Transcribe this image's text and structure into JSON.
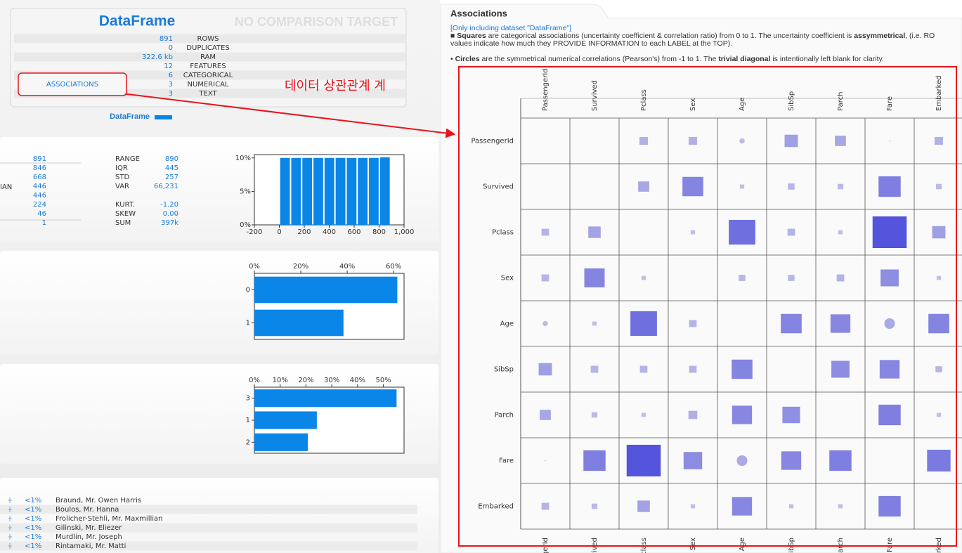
{
  "summary": {
    "title": "DataFrame",
    "compare": "NO COMPARISON TARGET",
    "rows": [
      {
        "value": "891",
        "label": "ROWS"
      },
      {
        "value": "0",
        "label": "DUPLICATES"
      },
      {
        "value": "322.6 kb",
        "label": "RAM"
      },
      {
        "value": "12",
        "label": "FEATURES"
      },
      {
        "value": "6",
        "label": "CATEGORICAL"
      },
      {
        "value": "3",
        "label": "NUMERICAL"
      },
      {
        "value": "3",
        "label": "TEXT"
      }
    ],
    "button": "ASSOCIATIONS",
    "legend": "DataFrame"
  },
  "annotation": "데이터 상관관계 계",
  "numeric_panel": {
    "left_label": "IAN",
    "left_values": [
      "891",
      "846",
      "668",
      "446",
      "446",
      "224",
      "46",
      "1"
    ],
    "stats": [
      {
        "label": "RANGE",
        "value": "890"
      },
      {
        "label": "IQR",
        "value": "445"
      },
      {
        "label": "STD",
        "value": "257"
      },
      {
        "label": "VAR",
        "value": "66,231"
      },
      {
        "label": "KURT.",
        "value": "-1.20"
      },
      {
        "label": "SKEW",
        "value": "0.00"
      },
      {
        "label": "SUM",
        "value": "397k"
      }
    ]
  },
  "text_panel": {
    "rows": [
      {
        "pct": "<1%",
        "name": "Braund, Mr. Owen Harris"
      },
      {
        "pct": "<1%",
        "name": "Boulos, Mr. Hanna"
      },
      {
        "pct": "<1%",
        "name": "Frolicher-Stehli, Mr. Maxmillian"
      },
      {
        "pct": "<1%",
        "name": "Gilinski, Mr. Eliezer"
      },
      {
        "pct": "<1%",
        "name": "Murdlin, Mr. Joseph"
      },
      {
        "pct": "<1%",
        "name": "Rintamaki, Mr. Matti"
      }
    ]
  },
  "associations": {
    "title": "Associations",
    "note": "[Only including dataset \"DataFrame\"]",
    "para1": [
      "■ ",
      "Squares",
      " are categorical associations (uncertainty coefficient & correlation ratio) from 0 to 1. The uncertainty coefficient is ",
      "assymmetrical",
      ", (i.e. RO"
    ],
    "para1_line2": "values indicate how much they PROVIDE INFORMATION to each LABEL at the TOP).",
    "para2": [
      "• ",
      "Circles",
      " are the symmetrical numerical correlations (Pearson's) from -1 to 1. The ",
      "trivial diagonal",
      " is intentionally left blank for clarity."
    ]
  },
  "chart_data": [
    {
      "type": "histogram",
      "bins": [
        1,
        90,
        179,
        268,
        357,
        446,
        535,
        624,
        713,
        802,
        891
      ],
      "values": [
        10,
        10,
        10,
        10,
        10,
        10,
        10,
        10,
        10,
        10.1
      ],
      "color": "#0a86e8",
      "xlim": [
        -200,
        1000
      ],
      "xticks": [
        -200,
        0,
        200,
        400,
        600,
        800,
        {
          "value": 1000,
          "label": "1,000"
        }
      ],
      "ylim": [
        0,
        10.5
      ],
      "yticks": [
        {
          "value": 0,
          "label": "0%"
        },
        {
          "value": 5,
          "label": "5%"
        },
        {
          "value": 10,
          "label": "10%"
        }
      ]
    },
    {
      "type": "hbar",
      "categories": [
        "0",
        "1"
      ],
      "values": [
        61.6,
        38.4
      ],
      "color": "#0a86e8",
      "xlim": [
        0,
        64.5
      ],
      "xticks": [
        {
          "value": 0,
          "label": "0%"
        },
        {
          "value": 20,
          "label": "20%"
        },
        {
          "value": 40,
          "label": "40%"
        },
        {
          "value": 60,
          "label": "60%"
        }
      ]
    },
    {
      "type": "hbar",
      "categories": [
        "3",
        "1",
        "2"
      ],
      "values": [
        55.1,
        24.2,
        20.7
      ],
      "color": "#0a86e8",
      "xlim": [
        0,
        58
      ],
      "xticks": [
        {
          "value": 0,
          "label": "0%"
        },
        {
          "value": 10,
          "label": "10%"
        },
        {
          "value": 20,
          "label": "20%"
        },
        {
          "value": 30,
          "label": "30%"
        },
        {
          "value": 40,
          "label": "40%"
        },
        {
          "value": 50,
          "label": "50%"
        }
      ]
    },
    {
      "type": "matrix",
      "labels": [
        "PassengerId",
        "Survived",
        "Pclass",
        "Sex",
        "Age",
        "SibSp",
        "Parch",
        "Fare",
        "Embarked"
      ],
      "color_low": "#cfcfea",
      "color_high": "#4f4fdb",
      "values": [
        [
          null,
          0,
          0.19,
          0.19,
          0.12,
          0.3,
          0.25,
          0.03,
          0.19
        ],
        [
          0,
          null,
          0.25,
          0.47,
          0.1,
          0.15,
          0.13,
          0.5,
          0.13
        ],
        [
          0.17,
          0.28,
          null,
          0.1,
          0.6,
          0.17,
          0.1,
          0.77,
          0.3
        ],
        [
          0.17,
          0.46,
          0.1,
          null,
          0.15,
          0.15,
          0.17,
          0.41,
          0.1
        ],
        [
          0.12,
          0.1,
          0.6,
          0.17,
          null,
          0.47,
          0.45,
          0.24,
          0.47
        ],
        [
          0.3,
          0.17,
          0.17,
          0.17,
          0.47,
          null,
          0.41,
          0.45,
          0.15
        ],
        [
          0.25,
          0.13,
          0.1,
          0.2,
          0.45,
          0.4,
          null,
          0.5,
          0.1
        ],
        [
          0.03,
          0.5,
          0.77,
          0.42,
          0.24,
          0.45,
          0.5,
          null,
          0.53
        ],
        [
          0.17,
          0.13,
          0.28,
          0.1,
          0.45,
          0.1,
          0.1,
          0.5,
          null
        ]
      ],
      "shapes": [
        [
          null,
          "square",
          "square",
          "square",
          "circle",
          "square",
          "square",
          "circle",
          "square"
        ],
        [
          "square",
          null,
          "square",
          "square",
          "square",
          "square",
          "square",
          "square",
          "square"
        ],
        [
          "square",
          "square",
          null,
          "square",
          "square",
          "square",
          "square",
          "square",
          "square"
        ],
        [
          "square",
          "square",
          "square",
          null,
          "square",
          "square",
          "square",
          "square",
          "square"
        ],
        [
          "circle",
          "square",
          "square",
          "square",
          null,
          "square",
          "square",
          "circle",
          "square"
        ],
        [
          "square",
          "square",
          "square",
          "square",
          "square",
          null,
          "square",
          "square",
          "square"
        ],
        [
          "square",
          "square",
          "square",
          "square",
          "square",
          "square",
          null,
          "square",
          "square"
        ],
        [
          "circle",
          "square",
          "square",
          "square",
          "circle",
          "square",
          "square",
          null,
          "square"
        ],
        [
          "square",
          "square",
          "square",
          "square",
          "square",
          "square",
          "square",
          "square",
          null
        ]
      ]
    }
  ]
}
